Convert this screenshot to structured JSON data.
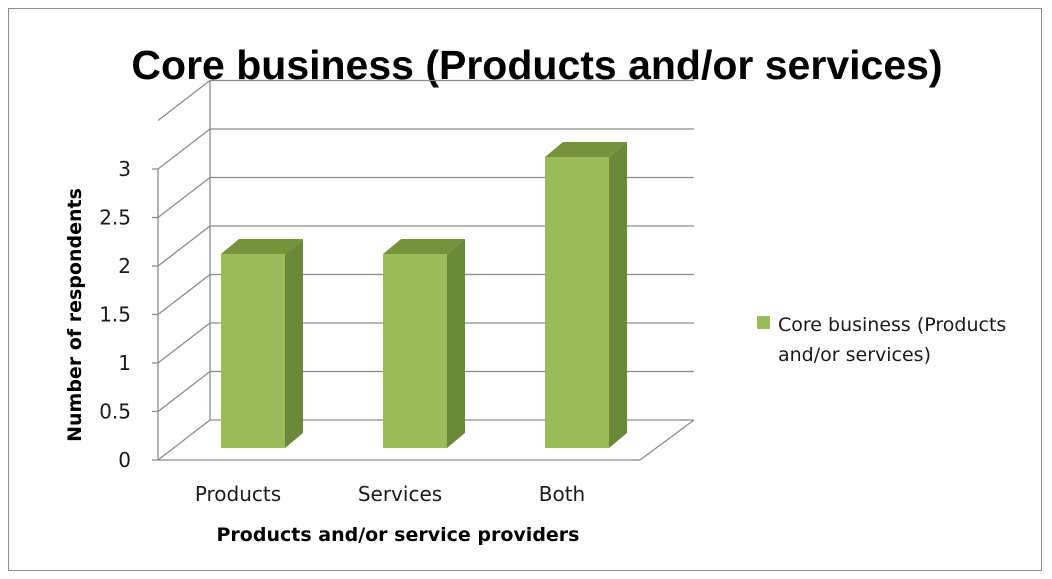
{
  "chart_data": {
    "type": "bar",
    "style": "3d-column",
    "title": "Core business (Products and/or services)",
    "categories": [
      "Products",
      "Services",
      "Both"
    ],
    "series": [
      {
        "name": "Core business (Products and/or services)",
        "values": [
          2,
          2,
          3
        ],
        "color": "#9bbb59",
        "side_color": "#6a8a3a",
        "top_color": "#76933c"
      }
    ],
    "xlabel": "Products and/or service providers",
    "ylabel": "Number of respondents",
    "ylim": [
      0,
      3
    ],
    "y_ticks": [
      "0",
      "0.5",
      "1",
      "1.5",
      "2",
      "2.5",
      "3"
    ],
    "grid": true,
    "legend_position": "right",
    "legend_lines": [
      "Core business (Products",
      "and/or services)"
    ]
  }
}
